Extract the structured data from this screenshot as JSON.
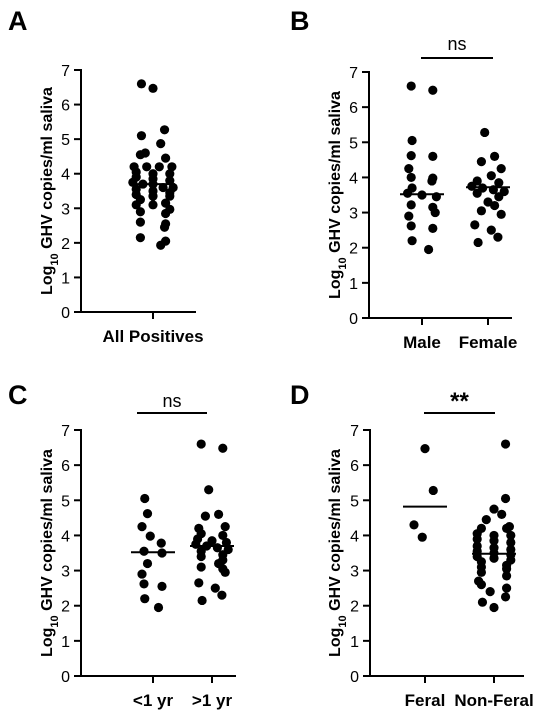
{
  "chart_data": [
    {
      "type": "scatter",
      "panel": "A",
      "ylabel": "Log10 GHV copies/ml saliva",
      "ylim": [
        0,
        7
      ],
      "yticks": [
        "0",
        "1",
        "2",
        "3",
        "4",
        "5",
        "6",
        "7"
      ],
      "categories": [
        "All Positives"
      ],
      "series": [
        {
          "values": [
            6.6,
            6.47,
            5.27,
            5.1,
            4.87,
            4.6,
            4.55,
            4.45,
            4.2,
            4.2,
            4.2,
            4.2,
            4.05,
            4.0,
            4.0,
            3.9,
            3.85,
            3.8,
            3.75,
            3.7,
            3.7,
            3.6,
            3.6,
            3.55,
            3.5,
            3.45,
            3.4,
            3.35,
            3.35,
            3.25,
            3.15,
            3.1,
            3.1,
            2.97,
            2.9,
            2.85,
            2.6,
            2.55,
            2.45,
            2.15,
            2.05,
            1.93
          ],
          "median": 3.7
        }
      ],
      "significance": ""
    },
    {
      "type": "scatter",
      "panel": "B",
      "ylabel": "Log10 GHV copies/ml saliva",
      "ylim": [
        0,
        7
      ],
      "yticks": [
        "0",
        "1",
        "2",
        "3",
        "4",
        "5",
        "6",
        "7"
      ],
      "categories": [
        "Male",
        "Female"
      ],
      "series": [
        {
          "values": [
            6.6,
            6.48,
            5.05,
            4.62,
            4.6,
            4.25,
            4.0,
            3.98,
            3.9,
            3.7,
            3.55,
            3.5,
            3.45,
            3.22,
            3.15,
            3.0,
            2.9,
            2.62,
            2.55,
            2.2,
            1.95
          ],
          "median": 3.52
        },
        {
          "values": [
            5.28,
            4.6,
            4.45,
            4.25,
            4.05,
            3.9,
            3.85,
            3.75,
            3.7,
            3.65,
            3.6,
            3.55,
            3.45,
            3.3,
            3.2,
            3.05,
            2.95,
            2.65,
            2.5,
            2.3,
            2.15
          ],
          "median": 3.72
        }
      ],
      "significance": "ns"
    },
    {
      "type": "scatter",
      "panel": "C",
      "ylabel": "Log10 GHV copies/ml saliva",
      "ylim": [
        0,
        7
      ],
      "yticks": [
        "0",
        "1",
        "2",
        "3",
        "4",
        "5",
        "6",
        "7"
      ],
      "categories": [
        "<1 yr",
        ">1 yr"
      ],
      "series": [
        {
          "values": [
            5.05,
            4.62,
            4.25,
            3.98,
            3.78,
            3.55,
            3.5,
            3.2,
            2.9,
            2.62,
            2.55,
            2.2,
            1.95
          ],
          "median": 3.52
        },
        {
          "values": [
            6.6,
            6.48,
            5.3,
            4.6,
            4.55,
            4.25,
            4.2,
            4.05,
            4.0,
            3.9,
            3.85,
            3.8,
            3.75,
            3.7,
            3.65,
            3.6,
            3.55,
            3.45,
            3.4,
            3.3,
            3.2,
            3.1,
            3.05,
            2.95,
            2.65,
            2.5,
            2.3,
            2.15
          ],
          "median": 3.7
        }
      ],
      "significance": "ns"
    },
    {
      "type": "scatter",
      "panel": "D",
      "ylabel": "Log10 GHV copies/ml saliva",
      "ylim": [
        0,
        7
      ],
      "yticks": [
        "0",
        "1",
        "2",
        "3",
        "4",
        "5",
        "6",
        "7"
      ],
      "categories": [
        "Feral",
        "Non-Feral"
      ],
      "series": [
        {
          "values": [
            6.47,
            5.28,
            4.3,
            3.95
          ],
          "median": 4.82
        },
        {
          "values": [
            6.6,
            5.05,
            4.75,
            4.6,
            4.45,
            4.25,
            4.2,
            4.2,
            4.05,
            4.0,
            4.0,
            3.9,
            3.85,
            3.8,
            3.7,
            3.65,
            3.6,
            3.55,
            3.5,
            3.45,
            3.4,
            3.35,
            3.3,
            3.25,
            3.15,
            3.1,
            3.05,
            2.95,
            2.85,
            2.7,
            2.6,
            2.5,
            2.4,
            2.25,
            2.1,
            1.95
          ],
          "median": 3.48
        }
      ],
      "significance": "**"
    }
  ]
}
